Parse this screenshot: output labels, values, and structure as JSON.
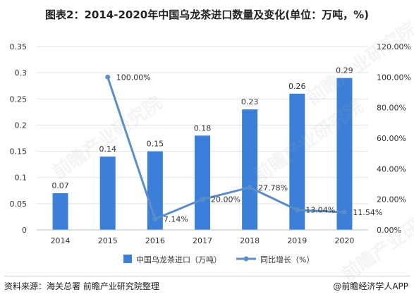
{
  "title": "图表2：2014-2020年中国乌龙茶进口数量及变化(单位：万吨，%)",
  "source": "资料来源：海关总署 前瞻产业研究院整理",
  "brand": "@前瞻经济学人APP",
  "watermark": "前瞻产业研究院",
  "colors": {
    "bar": "#3b7fd8",
    "line": "#5b8ec9",
    "grid": "#e3e3e3",
    "text": "#333333"
  },
  "chart_data": {
    "type": "bar",
    "categories": [
      "2014",
      "2015",
      "2016",
      "2017",
      "2018",
      "2019",
      "2020"
    ],
    "series": [
      {
        "name": "中国乌龙茶进口（万吨）",
        "type": "bar",
        "axis": "left",
        "values": [
          0.07,
          0.14,
          0.15,
          0.18,
          0.23,
          0.26,
          0.29
        ],
        "labels": [
          "0.07",
          "0.14",
          "0.15",
          "0.18",
          "0.23",
          "0.26",
          "0.29"
        ]
      },
      {
        "name": "同比增长（%）",
        "type": "line",
        "axis": "right",
        "values": [
          null,
          100.0,
          7.14,
          20.0,
          27.78,
          13.04,
          11.54
        ],
        "labels": [
          null,
          "100.00%",
          "7.14%",
          "20.00%",
          "27.78%",
          "13.04%",
          "11.54%"
        ]
      }
    ],
    "y_left": {
      "min": 0,
      "max": 0.35,
      "ticks": [
        "0",
        "0.05",
        "0.1",
        "0.15",
        "0.2",
        "0.25",
        "0.3",
        "0.35"
      ]
    },
    "y_right": {
      "min": 0,
      "max": 120,
      "ticks": [
        "0.00%",
        "20.00%",
        "40.00%",
        "60.00%",
        "80.00%",
        "100.00%",
        "120.00%"
      ]
    },
    "grid": true,
    "legend_position": "bottom"
  }
}
